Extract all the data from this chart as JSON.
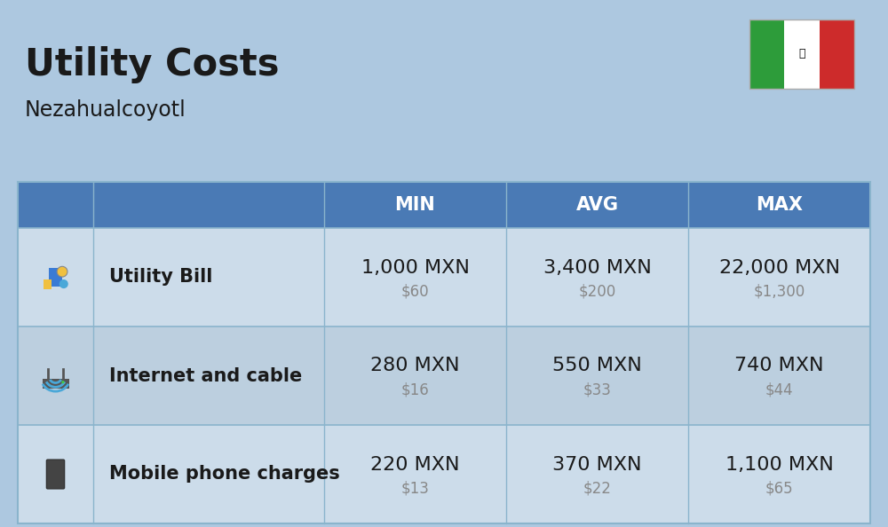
{
  "title": "Utility Costs",
  "subtitle": "Nezahualcoyotl",
  "background_color": "#adc8e0",
  "header_bg_color": "#4a7ab5",
  "header_text_color": "#ffffff",
  "row_bg_color_odd": "#ccdcea",
  "row_bg_color_even": "#bccfdf",
  "col_header": [
    "MIN",
    "AVG",
    "MAX"
  ],
  "rows": [
    {
      "label": "Utility Bill",
      "min_mxn": "1,000 MXN",
      "min_usd": "$60",
      "avg_mxn": "3,400 MXN",
      "avg_usd": "$200",
      "max_mxn": "22,000 MXN",
      "max_usd": "$1,300"
    },
    {
      "label": "Internet and cable",
      "min_mxn": "280 MXN",
      "min_usd": "$16",
      "avg_mxn": "550 MXN",
      "avg_usd": "$33",
      "max_mxn": "740 MXN",
      "max_usd": "$44"
    },
    {
      "label": "Mobile phone charges",
      "min_mxn": "220 MXN",
      "min_usd": "$13",
      "avg_mxn": "370 MXN",
      "avg_usd": "$22",
      "max_mxn": "1,100 MXN",
      "max_usd": "$65"
    }
  ],
  "title_fontsize": 30,
  "subtitle_fontsize": 17,
  "header_fontsize": 15,
  "label_fontsize": 15,
  "value_fontsize": 16,
  "usd_fontsize": 12,
  "flag_green": "#2d9c3a",
  "flag_white": "#ffffff",
  "flag_red": "#cd2b2b",
  "divider_color": "#8ab4cc",
  "text_dark": "#1a1a1a",
  "text_gray": "#888888"
}
